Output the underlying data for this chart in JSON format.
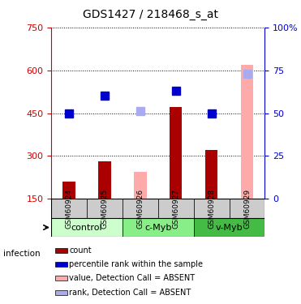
{
  "title": "GDS1427 / 218468_s_at",
  "samples": [
    "GSM60924",
    "GSM60925",
    "GSM60926",
    "GSM60927",
    "GSM60928",
    "GSM60929"
  ],
  "count_values": [
    210,
    280,
    null,
    470,
    320,
    null
  ],
  "count_color": "#aa0000",
  "rank_pct": [
    50,
    60,
    null,
    63,
    50,
    null
  ],
  "rank_color": "#0000cc",
  "absent_value_values": [
    null,
    null,
    245,
    null,
    null,
    620
  ],
  "absent_value_color": "#ffaaaa",
  "absent_rank_pct": [
    null,
    null,
    51,
    null,
    null,
    73
  ],
  "absent_rank_color": "#aaaaee",
  "ylim_left": [
    150,
    750
  ],
  "left_yticks": [
    150,
    300,
    450,
    600,
    750
  ],
  "right_yticks": [
    0,
    25,
    50,
    75,
    100
  ],
  "right_yticklabels": [
    "0",
    "25",
    "50",
    "75",
    "100%"
  ],
  "left_axis_color": "#cc0000",
  "right_axis_color": "#0000cc",
  "bar_width": 0.35,
  "marker_size": 7,
  "figsize": [
    3.71,
    3.75
  ],
  "dpi": 100,
  "infection_label": "infection",
  "group_boundaries": [
    [
      0,
      2,
      "control",
      "#ccffcc"
    ],
    [
      2,
      4,
      "c-Myb",
      "#88ee88"
    ],
    [
      4,
      6,
      "v-Myb",
      "#44bb44"
    ]
  ],
  "legend_items": [
    {
      "label": "count",
      "color": "#aa0000"
    },
    {
      "label": "percentile rank within the sample",
      "color": "#0000cc"
    },
    {
      "label": "value, Detection Call = ABSENT",
      "color": "#ffaaaa"
    },
    {
      "label": "rank, Detection Call = ABSENT",
      "color": "#aaaaee"
    }
  ]
}
